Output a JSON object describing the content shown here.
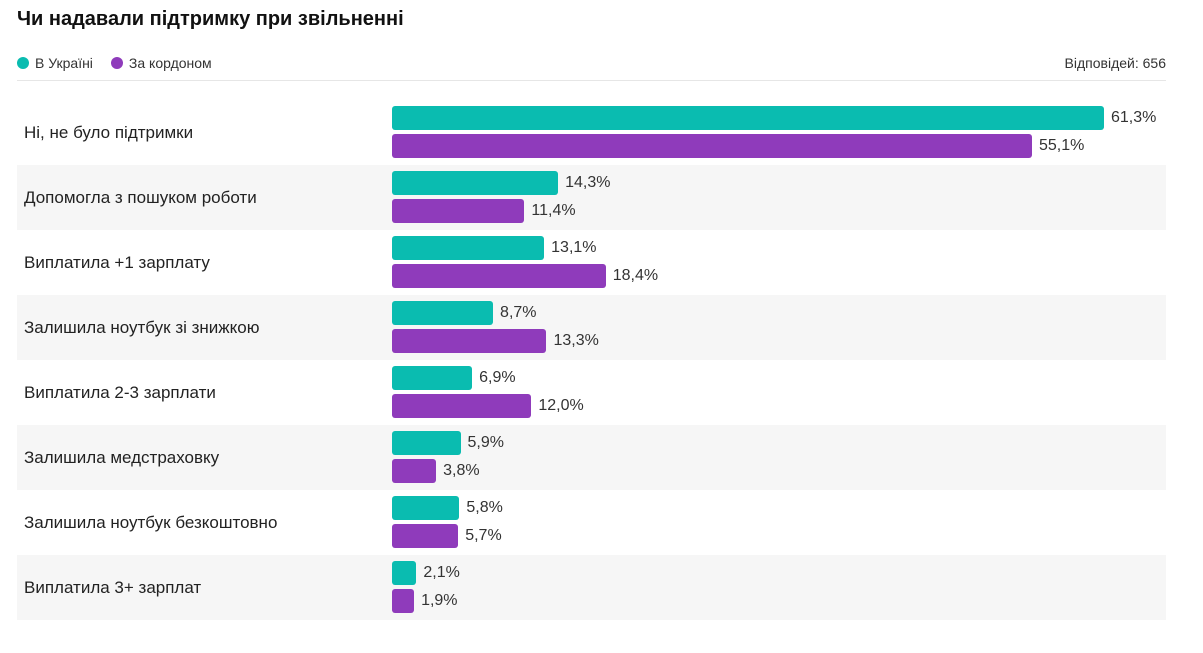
{
  "title": "Чи надавали підтримку при звільненні",
  "responses": "Відповідей: 656",
  "colors": {
    "ukraine": "#0abcb0",
    "abroad": "#8f3bbb"
  },
  "chart_data": {
    "type": "bar",
    "orientation": "horizontal",
    "title": "Чи надавали підтримку при звільненні",
    "legend_position": "top-left",
    "xlim": [
      0,
      61.3
    ],
    "categories": [
      "Ні, не було підтримки",
      "Допомогла з пошуком роботи",
      "Виплатила +1 зарплату",
      "Залишила ноутбук зі знижкою",
      "Виплатила 2-3 зарплати",
      "Залишила медстраховку",
      "Залишила ноутбук безкоштовно",
      "Виплатила 3+ зарплат"
    ],
    "series": [
      {
        "name": "В Україні",
        "color": "#0abcb0",
        "values": [
          61.3,
          14.3,
          13.1,
          8.7,
          6.9,
          5.9,
          5.8,
          2.1
        ],
        "labels": [
          "61,3%",
          "14,3%",
          "13,1%",
          "8,7%",
          "6,9%",
          "5,9%",
          "5,8%",
          "2,1%"
        ]
      },
      {
        "name": "За кордоном",
        "color": "#8f3bbb",
        "values": [
          55.1,
          11.4,
          18.4,
          13.3,
          12.0,
          3.8,
          5.7,
          1.9
        ],
        "labels": [
          "55,1%",
          "11,4%",
          "18,4%",
          "13,3%",
          "12,0%",
          "3,8%",
          "5,7%",
          "1,9%"
        ]
      }
    ]
  }
}
